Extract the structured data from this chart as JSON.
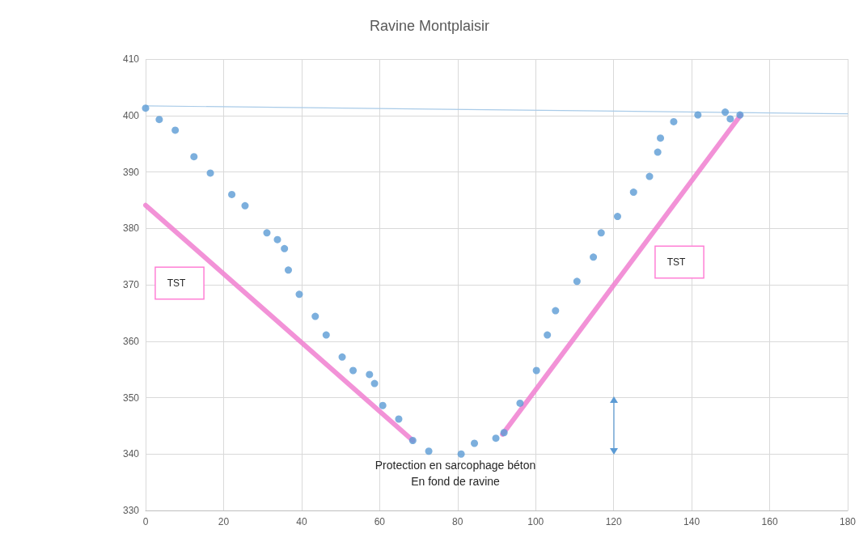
{
  "chart_data": {
    "type": "scatter",
    "title": "Ravine Montplaisir",
    "xlim": [
      0,
      180
    ],
    "xticks": [
      0,
      20,
      40,
      60,
      80,
      100,
      120,
      140,
      160,
      180
    ],
    "ylim": [
      330,
      410
    ],
    "yticks": [
      330,
      340,
      350,
      360,
      370,
      380,
      390,
      400,
      410
    ],
    "grid": true,
    "series": [
      {
        "type": "line",
        "color": "#a9cbe8",
        "x": [
          0,
          180
        ],
        "values": [
          401.7,
          400.3
        ],
        "marker": "none"
      },
      {
        "color": "#5b9bd5",
        "marker": "circle",
        "x": [
          0,
          3.5,
          7.6,
          12.4,
          16.6,
          22.1,
          25.5,
          31.1,
          33.8,
          35.6,
          36.6,
          39.4,
          43.5,
          46.3,
          50.4,
          53.2,
          57.4,
          58.7,
          60.8,
          64.9,
          68.5,
          72.6,
          80.9,
          84.3,
          89.8,
          91.9,
          96,
          100.2,
          103,
          105.1,
          110.6,
          114.8,
          116.8,
          121,
          125.1,
          129.2,
          131.3,
          132,
          135.4,
          141.6,
          148.6,
          149.9,
          152.4
        ],
        "values": [
          401.3,
          399.3,
          397.4,
          392.7,
          389.8,
          386,
          384,
          379.2,
          378,
          376.4,
          372.6,
          368.3,
          364.4,
          361.1,
          357.2,
          354.8,
          354.1,
          352.5,
          348.6,
          346.2,
          342.4,
          340.5,
          340,
          341.9,
          342.8,
          343.8,
          349,
          354.8,
          361.1,
          365.4,
          370.6,
          374.9,
          379.2,
          382.1,
          386.4,
          389.2,
          393.5,
          396,
          398.9,
          400.1,
          400.6,
          399.4,
          400.1
        ]
      },
      {
        "type": "line",
        "color": "#f07fd0",
        "x": [
          0,
          68.5
        ],
        "values": [
          384.1,
          342.4
        ],
        "marker": "none"
      },
      {
        "type": "line",
        "color": "#f07fd0",
        "x": [
          91.5,
          152.5
        ],
        "values": [
          343.5,
          400
        ],
        "marker": "none"
      }
    ],
    "annotations": [
      "TST",
      "TST",
      "Protection en sarcophage béton\nEn fond de ravine"
    ]
  }
}
